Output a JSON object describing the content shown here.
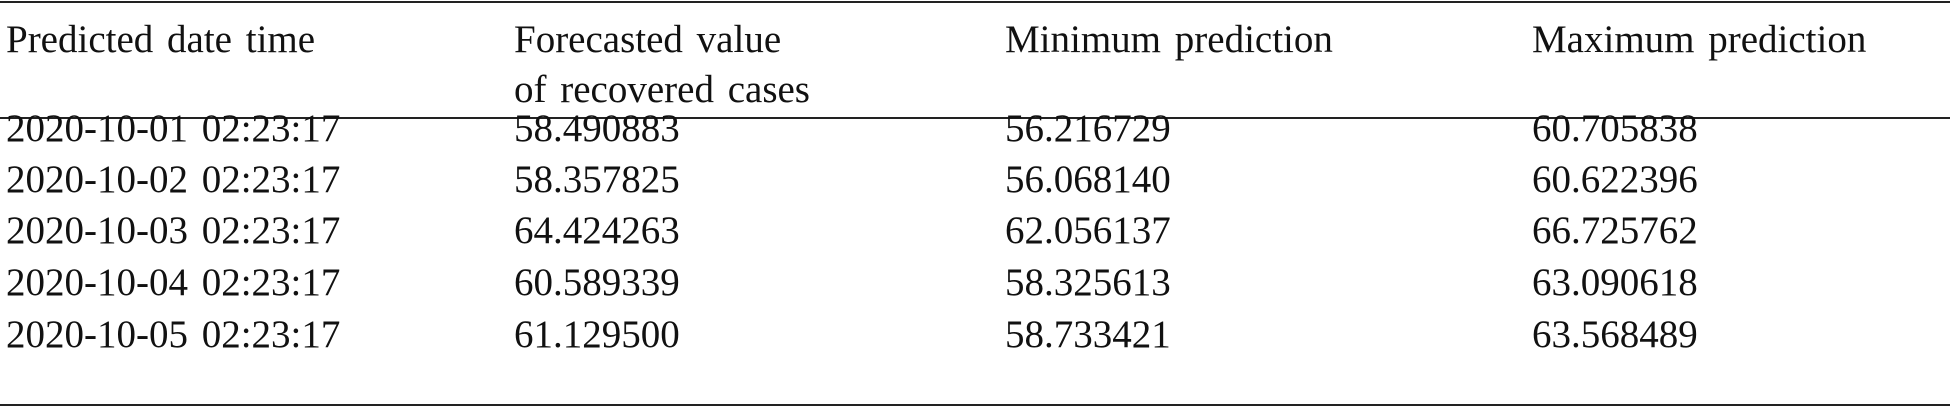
{
  "table": {
    "header": [
      [
        "Predicted date time"
      ],
      [
        "Forecasted value",
        "of recovered cases"
      ],
      [
        "Minimum prediction"
      ],
      [
        "Maximum prediction"
      ]
    ],
    "rows": [
      [
        "2020-10-01 02:23:17",
        "58.490883",
        "56.216729",
        "60.705838"
      ],
      [
        "2020-10-02 02:23:17",
        "58.357825",
        "56.068140",
        "60.622396"
      ],
      [
        "2020-10-03 02:23:17",
        "64.424263",
        "62.056137",
        "66.725762"
      ],
      [
        "2020-10-04 02:23:17",
        "60.589339",
        "58.325613",
        "63.090618"
      ],
      [
        "2020-10-05 02:23:17",
        "61.129500",
        "58.733421",
        "63.568489"
      ]
    ]
  }
}
